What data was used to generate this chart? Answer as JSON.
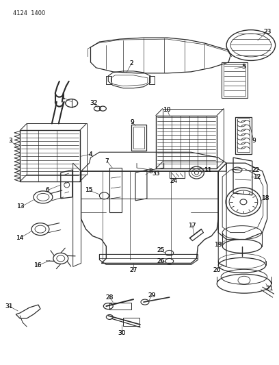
{
  "part_number": "4124  1400",
  "bg_color": "#ffffff",
  "line_color": "#2a2a2a",
  "text_color": "#1a1a1a",
  "fig_width": 4.08,
  "fig_height": 5.33,
  "dpi": 100
}
